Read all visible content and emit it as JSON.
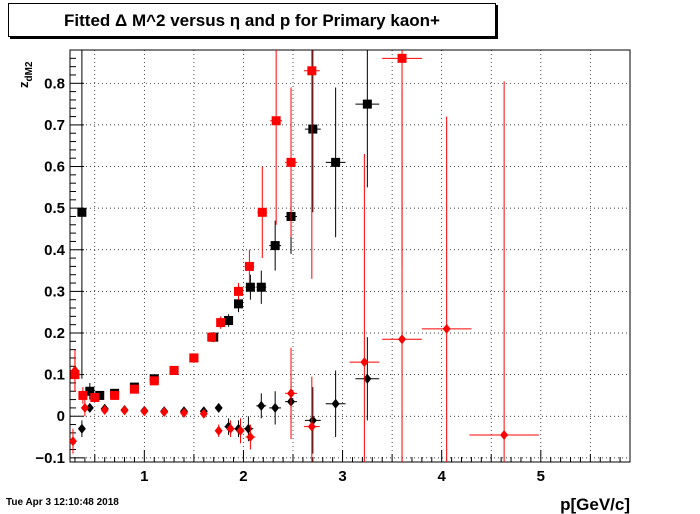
{
  "chart_data": {
    "type": "scatter",
    "title": "Fitted Δ M^2 versus η and p for Primary kaon+",
    "xlabel": "p[GeV/c]",
    "ylabel_main": "z",
    "ylabel_sub": "dM2",
    "xlim": [
      0.25,
      5.9
    ],
    "ylim": [
      -0.11,
      0.88
    ],
    "x_ticks": [
      1,
      2,
      3,
      4,
      5
    ],
    "x_tick_labels": [
      "1",
      "2",
      "3",
      "4",
      "5"
    ],
    "y_ticks": [
      -0.1,
      0,
      0.1,
      0.2,
      0.3,
      0.4,
      0.5,
      0.6,
      0.7,
      0.8
    ],
    "y_tick_labels": [
      "−0.1",
      "0",
      "0.1",
      "0.2",
      "0.3",
      "0.4",
      "0.5",
      "0.6",
      "0.7",
      "0.8"
    ],
    "grid": true,
    "legend": "none",
    "series": [
      {
        "marker": "square",
        "color": "#000000",
        "points": [
          {
            "x": 0.37,
            "y": 0.49,
            "ex": 0.01,
            "ey": 0.4
          },
          {
            "x": 0.45,
            "y": 0.06,
            "ex": 0.02,
            "ey": 0.02
          },
          {
            "x": 0.55,
            "y": 0.05,
            "ex": 0.03,
            "ey": 0.01
          },
          {
            "x": 0.7,
            "y": 0.055,
            "ex": 0.03,
            "ey": 0.008
          },
          {
            "x": 0.9,
            "y": 0.07,
            "ex": 0.03,
            "ey": 0.008
          },
          {
            "x": 1.1,
            "y": 0.09,
            "ex": 0.03,
            "ey": 0.008
          },
          {
            "x": 1.3,
            "y": 0.11,
            "ex": 0.03,
            "ey": 0.01
          },
          {
            "x": 1.5,
            "y": 0.14,
            "ex": 0.03,
            "ey": 0.01
          },
          {
            "x": 1.7,
            "y": 0.19,
            "ex": 0.03,
            "ey": 0.012
          },
          {
            "x": 1.85,
            "y": 0.23,
            "ex": 0.04,
            "ey": 0.015
          },
          {
            "x": 1.95,
            "y": 0.27,
            "ex": 0.04,
            "ey": 0.02
          },
          {
            "x": 2.07,
            "y": 0.31,
            "ex": 0.05,
            "ey": 0.03
          },
          {
            "x": 2.18,
            "y": 0.31,
            "ex": 0.05,
            "ey": 0.04
          },
          {
            "x": 2.32,
            "y": 0.41,
            "ex": 0.06,
            "ey": 0.06
          },
          {
            "x": 2.48,
            "y": 0.48,
            "ex": 0.06,
            "ey": 0.09
          },
          {
            "x": 2.7,
            "y": 0.69,
            "ex": 0.08,
            "ey": 0.2
          },
          {
            "x": 2.93,
            "y": 0.61,
            "ex": 0.1,
            "ey": 0.18
          },
          {
            "x": 3.25,
            "y": 0.75,
            "ex": 0.12,
            "ey": 0.2
          }
        ]
      },
      {
        "marker": "square",
        "color": "#ff0000",
        "points": [
          {
            "x": 0.3,
            "y": 0.1,
            "ex": 0.01,
            "ey": 0.04
          },
          {
            "x": 0.38,
            "y": 0.05,
            "ex": 0.02,
            "ey": 0.02
          },
          {
            "x": 0.5,
            "y": 0.045,
            "ex": 0.03,
            "ey": 0.01
          },
          {
            "x": 0.7,
            "y": 0.05,
            "ex": 0.03,
            "ey": 0.008
          },
          {
            "x": 0.9,
            "y": 0.065,
            "ex": 0.03,
            "ey": 0.008
          },
          {
            "x": 1.1,
            "y": 0.085,
            "ex": 0.03,
            "ey": 0.008
          },
          {
            "x": 1.3,
            "y": 0.11,
            "ex": 0.03,
            "ey": 0.01
          },
          {
            "x": 1.5,
            "y": 0.14,
            "ex": 0.03,
            "ey": 0.01
          },
          {
            "x": 1.68,
            "y": 0.19,
            "ex": 0.03,
            "ey": 0.012
          },
          {
            "x": 1.77,
            "y": 0.225,
            "ex": 0.03,
            "ey": 0.015
          },
          {
            "x": 1.95,
            "y": 0.3,
            "ex": 0.04,
            "ey": 0.02
          },
          {
            "x": 2.06,
            "y": 0.36,
            "ex": 0.05,
            "ey": 0.04
          },
          {
            "x": 2.19,
            "y": 0.49,
            "ex": 0.05,
            "ey": 0.11
          },
          {
            "x": 2.33,
            "y": 0.71,
            "ex": 0.06,
            "ey": 0.25
          },
          {
            "x": 2.48,
            "y": 0.61,
            "ex": 0.06,
            "ey": 0.18
          },
          {
            "x": 2.69,
            "y": 0.83,
            "ex": 0.08,
            "ey": 0.5
          },
          {
            "x": 3.6,
            "y": 0.86,
            "ex": 0.2,
            "ey": 0.5
          }
        ]
      },
      {
        "marker": "diamond",
        "color": "#000000",
        "points": [
          {
            "x": 0.37,
            "y": -0.03,
            "ex": 0.01,
            "ey": 0.02
          },
          {
            "x": 0.45,
            "y": 0.02,
            "ex": 0.02,
            "ey": 0.01
          },
          {
            "x": 0.6,
            "y": 0.018,
            "ex": 0.03,
            "ey": 0.006
          },
          {
            "x": 0.8,
            "y": 0.015,
            "ex": 0.03,
            "ey": 0.006
          },
          {
            "x": 1.0,
            "y": 0.013,
            "ex": 0.03,
            "ey": 0.006
          },
          {
            "x": 1.2,
            "y": 0.012,
            "ex": 0.03,
            "ey": 0.006
          },
          {
            "x": 1.4,
            "y": 0.012,
            "ex": 0.03,
            "ey": 0.006
          },
          {
            "x": 1.6,
            "y": 0.012,
            "ex": 0.03,
            "ey": 0.006
          },
          {
            "x": 1.75,
            "y": 0.02,
            "ex": 0.03,
            "ey": 0.01
          },
          {
            "x": 1.85,
            "y": -0.025,
            "ex": 0.04,
            "ey": 0.02
          },
          {
            "x": 1.95,
            "y": -0.03,
            "ex": 0.04,
            "ey": 0.02
          },
          {
            "x": 2.05,
            "y": -0.03,
            "ex": 0.05,
            "ey": 0.03
          },
          {
            "x": 2.18,
            "y": 0.025,
            "ex": 0.05,
            "ey": 0.03
          },
          {
            "x": 2.32,
            "y": 0.02,
            "ex": 0.06,
            "ey": 0.04
          },
          {
            "x": 2.48,
            "y": 0.035,
            "ex": 0.06,
            "ey": 0.05
          },
          {
            "x": 2.7,
            "y": -0.01,
            "ex": 0.08,
            "ey": 0.08
          },
          {
            "x": 2.93,
            "y": 0.03,
            "ex": 0.1,
            "ey": 0.08
          },
          {
            "x": 3.25,
            "y": 0.09,
            "ex": 0.12,
            "ey": 0.1
          }
        ]
      },
      {
        "marker": "diamond",
        "color": "#ff0000",
        "points": [
          {
            "x": 0.28,
            "y": -0.06,
            "ex": 0.01,
            "ey": 0.03
          },
          {
            "x": 0.3,
            "y": 0.11,
            "ex": 0.01,
            "ey": 0.05
          },
          {
            "x": 0.4,
            "y": 0.02,
            "ex": 0.02,
            "ey": 0.02
          },
          {
            "x": 0.6,
            "y": 0.015,
            "ex": 0.03,
            "ey": 0.006
          },
          {
            "x": 0.8,
            "y": 0.014,
            "ex": 0.03,
            "ey": 0.006
          },
          {
            "x": 1.0,
            "y": 0.012,
            "ex": 0.03,
            "ey": 0.006
          },
          {
            "x": 1.2,
            "y": 0.01,
            "ex": 0.03,
            "ey": 0.006
          },
          {
            "x": 1.4,
            "y": 0.008,
            "ex": 0.03,
            "ey": 0.006
          },
          {
            "x": 1.6,
            "y": 0.006,
            "ex": 0.03,
            "ey": 0.006
          },
          {
            "x": 1.75,
            "y": -0.035,
            "ex": 0.03,
            "ey": 0.015
          },
          {
            "x": 1.87,
            "y": -0.03,
            "ex": 0.04,
            "ey": 0.02
          },
          {
            "x": 1.97,
            "y": -0.035,
            "ex": 0.04,
            "ey": 0.03
          },
          {
            "x": 2.07,
            "y": -0.05,
            "ex": 0.05,
            "ey": 0.03
          },
          {
            "x": 2.48,
            "y": 0.055,
            "ex": 0.06,
            "ey": 0.11
          },
          {
            "x": 2.69,
            "y": -0.025,
            "ex": 0.08,
            "ey": 0.12
          },
          {
            "x": 3.22,
            "y": 0.13,
            "ex": 0.15,
            "ey": 0.5
          },
          {
            "x": 3.6,
            "y": 0.185,
            "ex": 0.2,
            "ey": 0.6
          },
          {
            "x": 4.05,
            "y": 0.21,
            "ex": 0.25,
            "ey": 0.51
          },
          {
            "x": 4.63,
            "y": -0.045,
            "ex": 0.35,
            "ey": 0.85
          }
        ]
      }
    ]
  },
  "footer": {
    "timestamp": "Tue Apr  3 12:10:48 2018"
  }
}
